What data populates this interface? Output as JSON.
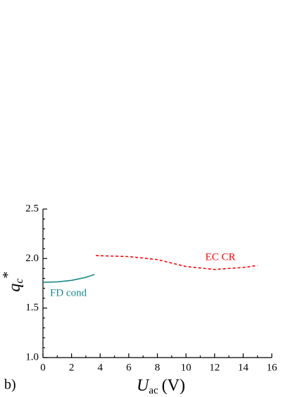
{
  "chart_data": {
    "type": "line",
    "panel_label": "b)",
    "ylabel": {
      "base": "q",
      "sub": "c",
      "sup": "*"
    },
    "xlabel": {
      "base": "U",
      "sub": "ac",
      "rest": "(V)"
    },
    "xlim": [
      0,
      16
    ],
    "ylim": [
      1.0,
      2.5
    ],
    "xticks": [
      0,
      2,
      4,
      6,
      8,
      10,
      12,
      14,
      16
    ],
    "xminorticks": [
      1,
      3,
      5,
      7,
      9,
      11,
      13,
      15
    ],
    "yticks": [
      {
        "value": 1.0,
        "label": "1.0"
      },
      {
        "value": 1.5,
        "label": "1.5"
      },
      {
        "value": 2.0,
        "label": "2.0"
      },
      {
        "value": 2.5,
        "label": "2.5"
      }
    ],
    "yminorticks": [
      1.1,
      1.2,
      1.3,
      1.4,
      1.6,
      1.7,
      1.8,
      1.9,
      2.1,
      2.2,
      2.3,
      2.4
    ],
    "series": [
      {
        "name": "FD cond",
        "color": "#1a8a8a",
        "dash": false,
        "x": [
          0,
          1,
          2,
          3,
          3.6
        ],
        "values": [
          1.76,
          1.765,
          1.78,
          1.81,
          1.84
        ]
      },
      {
        "name": "EC CR",
        "color": "#ff0000",
        "dash": true,
        "x": [
          3.7,
          6,
          8,
          10,
          12,
          14,
          15
        ],
        "values": [
          2.03,
          2.02,
          1.99,
          1.92,
          1.89,
          1.91,
          1.93
        ]
      }
    ]
  }
}
